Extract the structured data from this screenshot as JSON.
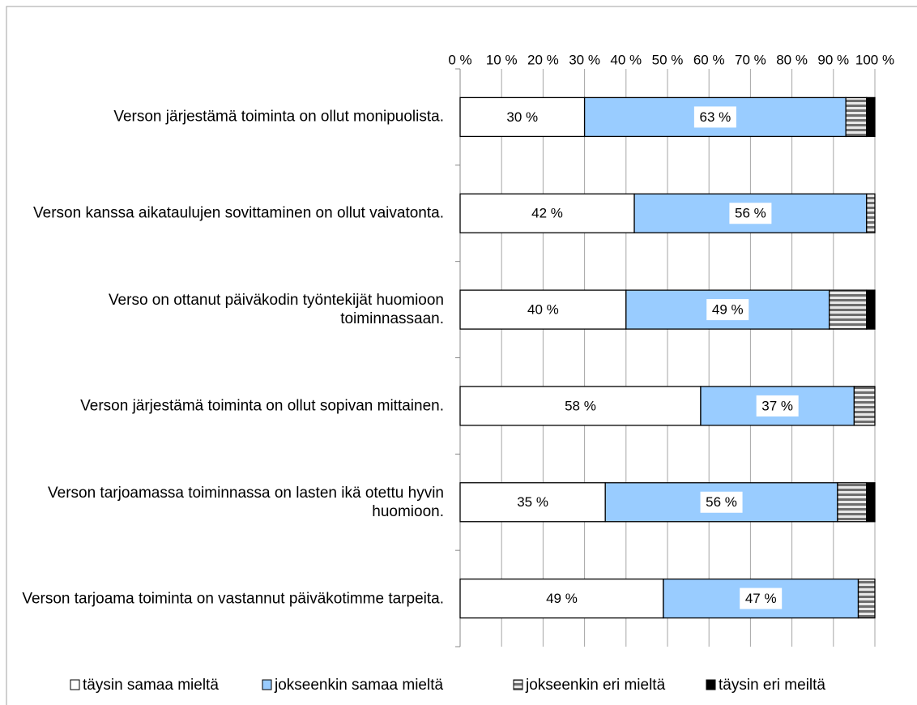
{
  "chart_data": {
    "type": "stacked-bar-horizontal",
    "categories": [
      "Verson järjestämä toiminta on ollut monipuolista.",
      "Verson kanssa aikataulujen sovittaminen on ollut vaivatonta.",
      "Verso on ottanut päiväkodin työntekijät huomioon toiminnassaan.",
      "Verson järjestämä toiminta on ollut sopivan mittainen.",
      "Verson tarjoamassa toiminnassa on lasten ikä otettu hyvin huomioon.",
      "Verson tarjoama toiminta on vastannut päiväkotimme tarpeita."
    ],
    "series": [
      {
        "name": "täysin samaa mieltä",
        "color": "#ffffff",
        "values": [
          30,
          42,
          40,
          58,
          35,
          49
        ],
        "value_labels": [
          "30 %",
          "42 %",
          "40 %",
          "58 %",
          "35 %",
          "49 %"
        ]
      },
      {
        "name": "jokseenkin samaa mieltä",
        "color": "#99ccff",
        "values": [
          63,
          56,
          49,
          37,
          56,
          47
        ],
        "value_labels": [
          "63 %",
          "56 %",
          "49 %",
          "37 %",
          "56 %",
          "47 %"
        ]
      },
      {
        "name": "jokseenkin eri mieltä",
        "color": "#8c8c8c",
        "pattern": "stripes",
        "values": [
          5,
          2,
          9,
          5,
          7,
          4
        ]
      },
      {
        "name": "täysin eri meiltä",
        "color": "#000000",
        "values": [
          2,
          0,
          2,
          0,
          2,
          0
        ]
      }
    ],
    "xlim": [
      0,
      100
    ],
    "xticks": [
      {
        "value": 0,
        "label": "0 %"
      },
      {
        "value": 10,
        "label": "10 %"
      },
      {
        "value": 20,
        "label": "20 %"
      },
      {
        "value": 30,
        "label": "30 %"
      },
      {
        "value": 40,
        "label": "40 %"
      },
      {
        "value": 50,
        "label": "50 %"
      },
      {
        "value": 60,
        "label": "60 %"
      },
      {
        "value": 70,
        "label": "70 %"
      },
      {
        "value": 80,
        "label": "80 %"
      },
      {
        "value": 90,
        "label": "90 %"
      },
      {
        "value": 100,
        "label": "100 %"
      }
    ],
    "grid": true,
    "legend": "bottom"
  }
}
